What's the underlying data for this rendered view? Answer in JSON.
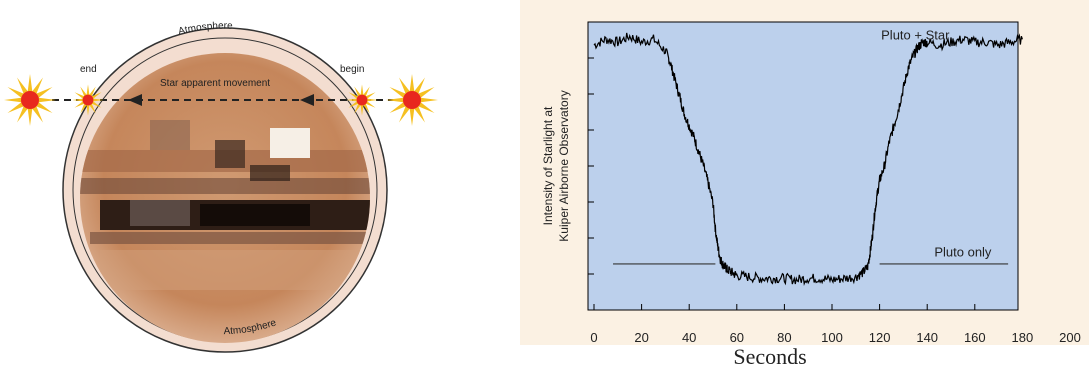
{
  "diagram": {
    "labels": {
      "atmosphere_top": "Atmosphere",
      "atmosphere_bottom": "Atmosphere",
      "end": "end",
      "begin": "begin",
      "movement": "Star apparent movement"
    },
    "colors": {
      "planet": "#c98a5f",
      "planet_dark": "#2a1a12",
      "atmosphere_ring": "#f3ddd0",
      "star_core": "#e8281e",
      "star_rays": "#f5c021",
      "arrow": "#222222"
    },
    "icons": [
      "star-icon",
      "arrow-left-icon"
    ]
  },
  "chart_data": {
    "type": "line",
    "title": "",
    "xlabel": "Seconds",
    "ylabel_lines": [
      "Intensity of Starlight at",
      "Kuiper Airborne Observatory"
    ],
    "xlim": [
      0,
      200
    ],
    "x_ticks": [
      0,
      20,
      40,
      60,
      80,
      100,
      120,
      140,
      160,
      180,
      200
    ],
    "annotations": [
      {
        "text": "Pluto + Star",
        "x": 135,
        "y": 0.94
      },
      {
        "text": "Pluto only",
        "x": 155,
        "y": 0.185
      }
    ],
    "reference_lines": [
      {
        "name": "pluto-only-level-left",
        "x": [
          8,
          51
        ],
        "y": 0.16
      },
      {
        "name": "pluto-only-level-right",
        "x": [
          120,
          174
        ],
        "y": 0.16
      }
    ],
    "series": [
      {
        "x": [
          0,
          5,
          10,
          15,
          20,
          25,
          30,
          32,
          34,
          36,
          38,
          40,
          42,
          44,
          46,
          48,
          50,
          51,
          52,
          53,
          54,
          55,
          56,
          58,
          60,
          65,
          70,
          75,
          80,
          85,
          90,
          95,
          100,
          105,
          110,
          113,
          115,
          116,
          117,
          118,
          119,
          120,
          122,
          124,
          126,
          128,
          130,
          132,
          134,
          136,
          138,
          140,
          145,
          150,
          155,
          160,
          165,
          170,
          175,
          180
        ],
        "y": [
          0.92,
          0.94,
          0.93,
          0.95,
          0.93,
          0.94,
          0.9,
          0.86,
          0.8,
          0.74,
          0.68,
          0.64,
          0.6,
          0.55,
          0.5,
          0.44,
          0.37,
          0.28,
          0.22,
          0.18,
          0.16,
          0.15,
          0.14,
          0.13,
          0.12,
          0.115,
          0.11,
          0.11,
          0.11,
          0.105,
          0.11,
          0.11,
          0.105,
          0.11,
          0.115,
          0.13,
          0.15,
          0.2,
          0.26,
          0.34,
          0.4,
          0.45,
          0.5,
          0.58,
          0.64,
          0.7,
          0.77,
          0.84,
          0.88,
          0.91,
          0.93,
          0.93,
          0.92,
          0.93,
          0.94,
          0.93,
          0.93,
          0.92,
          0.93,
          0.94
        ]
      }
    ],
    "colors": {
      "background": "#fbf1e3",
      "plot_area": "#bcd0ec",
      "line": "#000000"
    }
  }
}
